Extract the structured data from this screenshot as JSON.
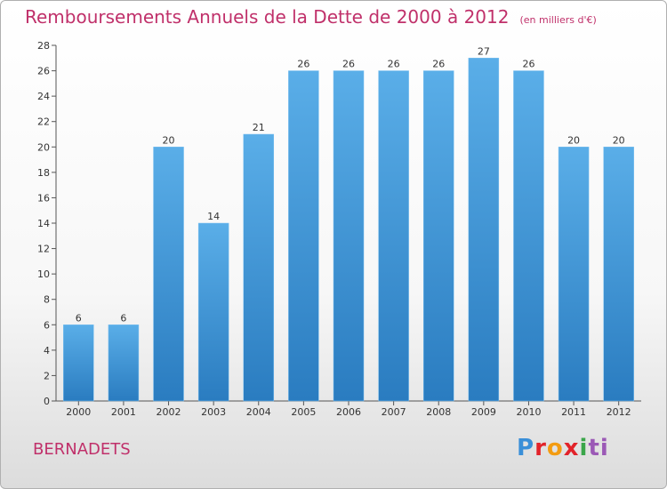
{
  "title": "Remboursements Annuels de la Dette de 2000 à 2012",
  "unit": "(en milliers d'€)",
  "place": "BERNADETS",
  "logo": {
    "p": "P",
    "r": "r",
    "o": "o",
    "x": "x",
    "i": "i",
    "t": "ti"
  },
  "chart_data": {
    "type": "bar",
    "title": "Remboursements Annuels de la Dette de 2000 à 2012",
    "categories": [
      "2000",
      "2001",
      "2002",
      "2003",
      "2004",
      "2005",
      "2006",
      "2007",
      "2008",
      "2009",
      "2010",
      "2011",
      "2012"
    ],
    "values": [
      6,
      6,
      20,
      14,
      21,
      26,
      26,
      26,
      26,
      27,
      26,
      20,
      20
    ],
    "ylim": [
      0,
      28
    ],
    "yticks": [
      0,
      2,
      4,
      6,
      8,
      10,
      12,
      14,
      16,
      18,
      20,
      22,
      24,
      26,
      28
    ],
    "grid": false,
    "bar_color": "#4a9ee0"
  }
}
